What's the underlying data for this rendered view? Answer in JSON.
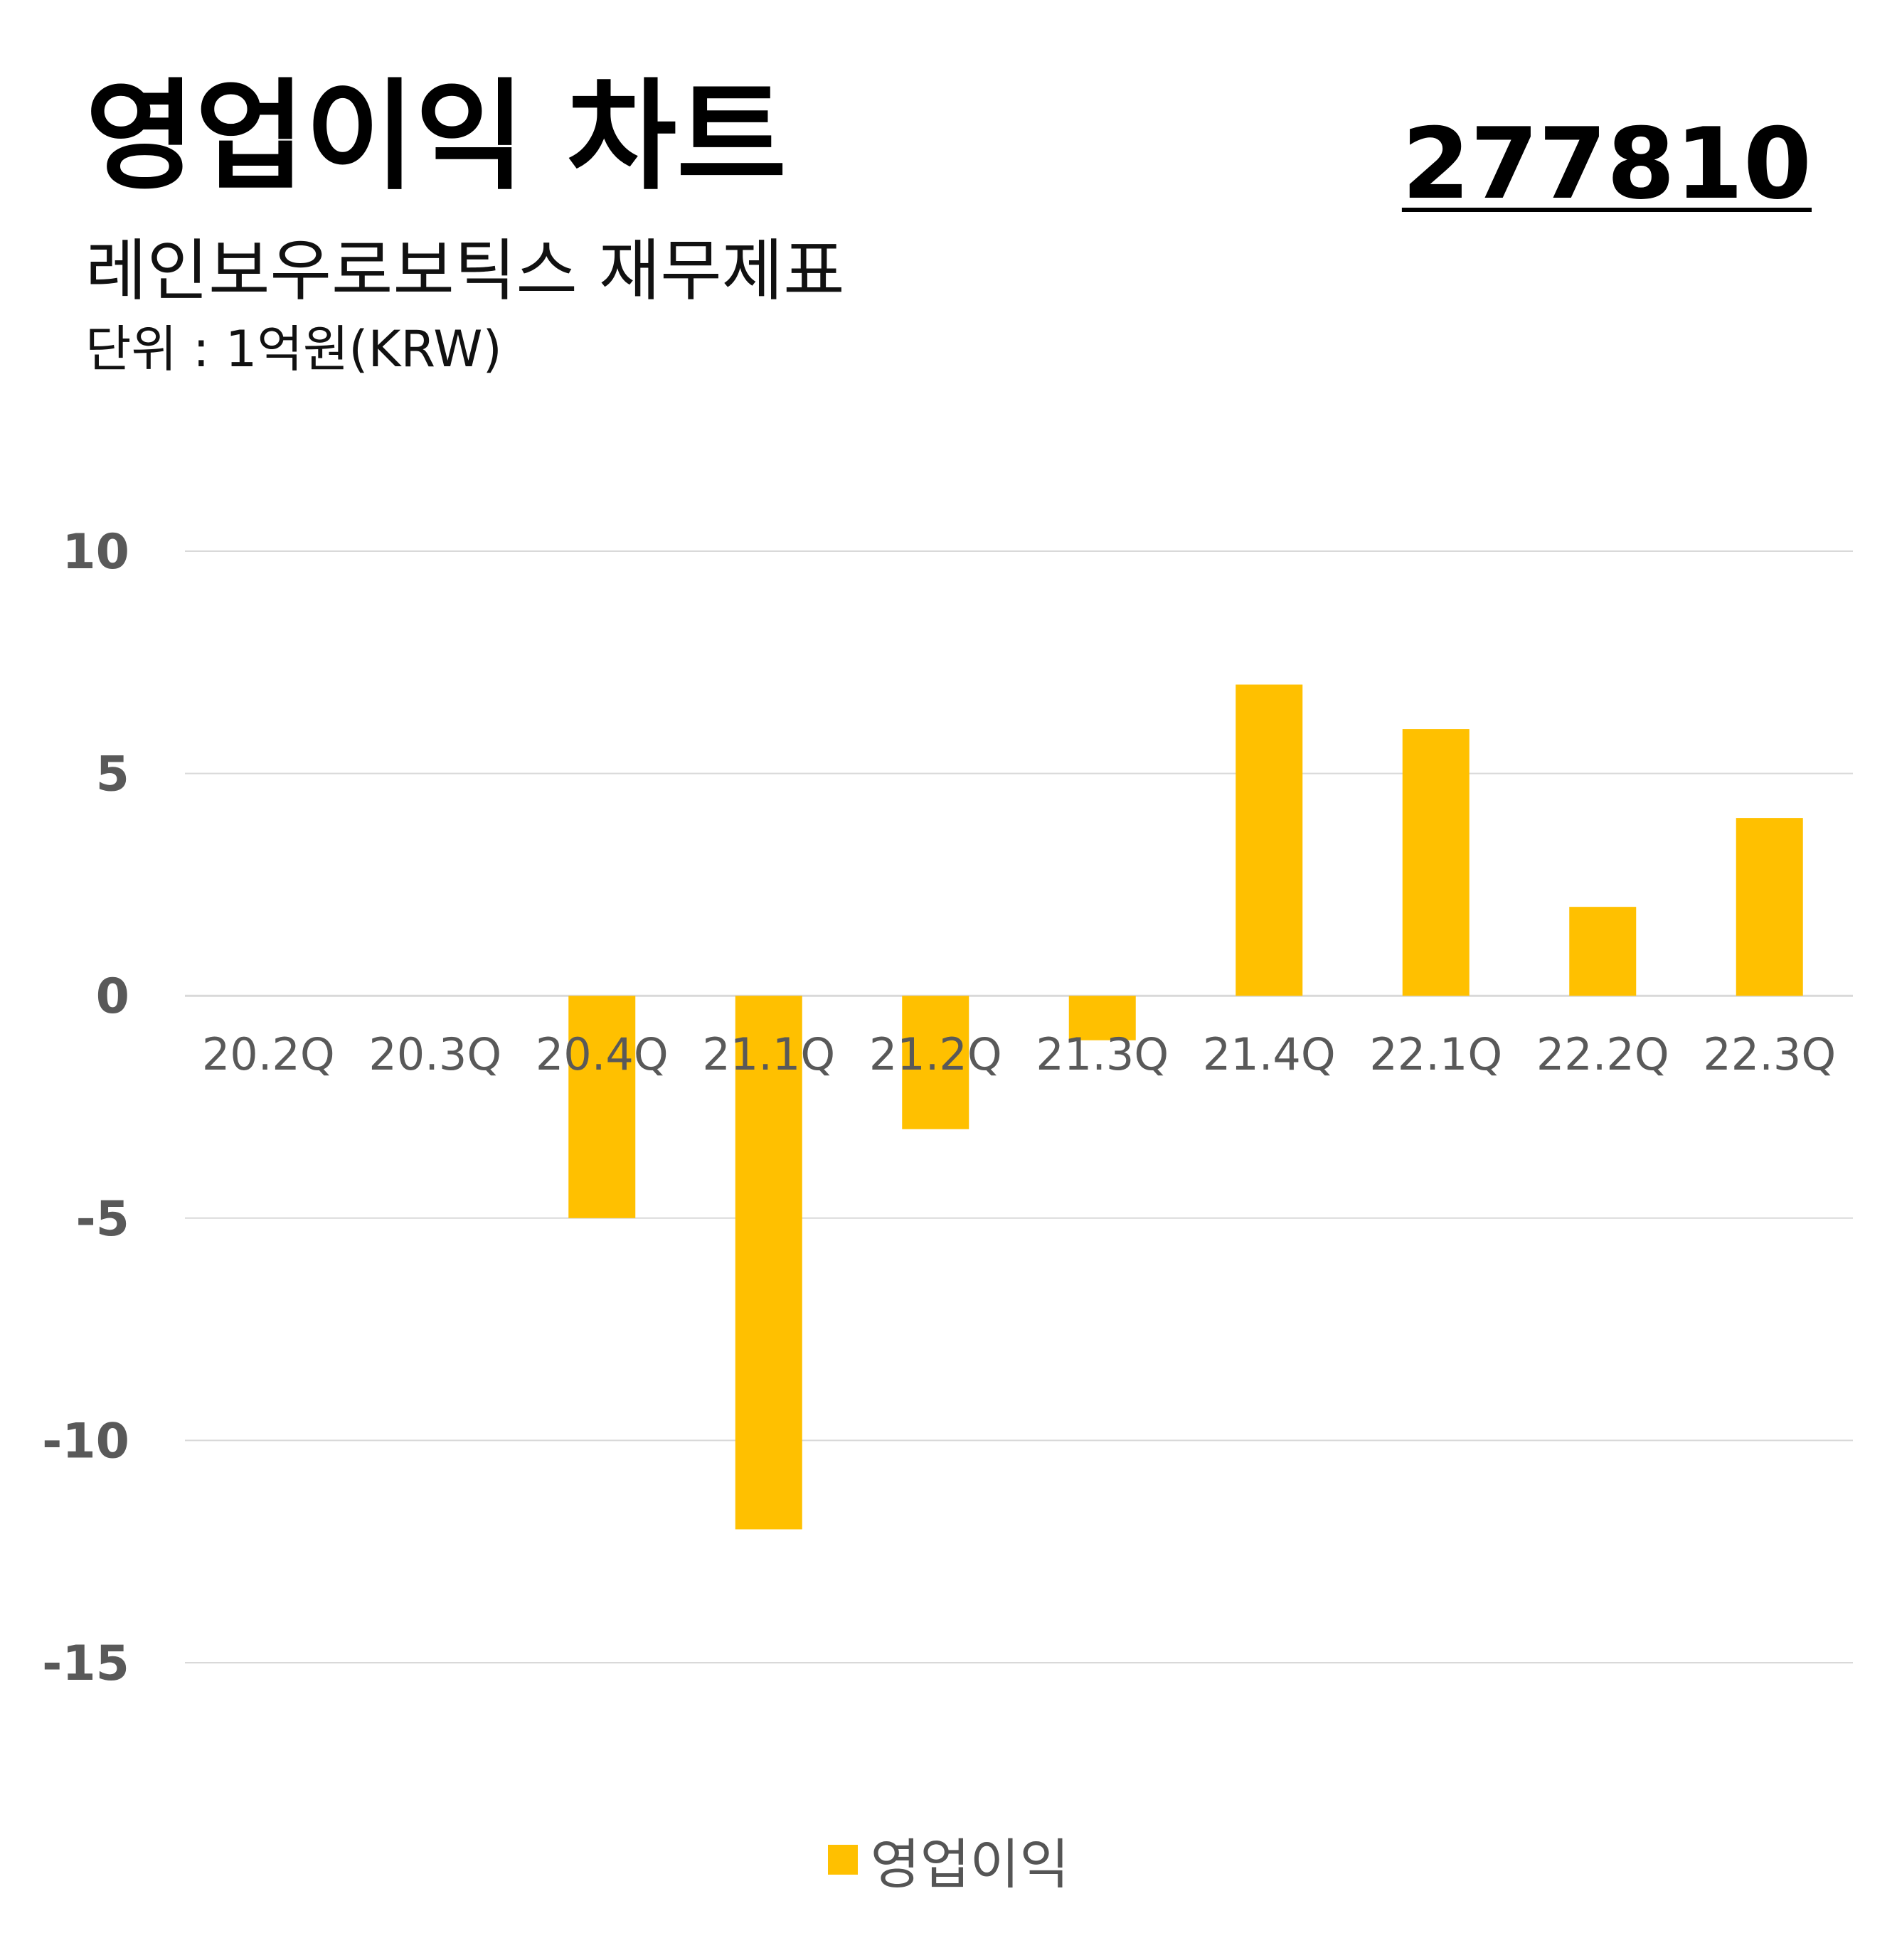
{
  "header": {
    "title": "영업이익 차트",
    "subtitle": "레인보우로보틱스 재무제표",
    "unit": "단위 : 1억원(KRW)",
    "code": "277810"
  },
  "colors": {
    "bar": "#FFC000",
    "grid": "#D9D9D9",
    "tick_text": "#595959",
    "category_text": "#595959"
  },
  "chart_data": {
    "type": "bar",
    "categories": [
      "20.2Q",
      "20.3Q",
      "20.4Q",
      "21.1Q",
      "21.2Q",
      "21.3Q",
      "21.4Q",
      "22.1Q",
      "22.2Q",
      "22.3Q"
    ],
    "series": [
      {
        "name": "영업이익",
        "values": [
          0,
          0,
          -5,
          -12,
          -3,
          -1,
          7,
          6,
          2,
          4
        ]
      }
    ],
    "ylim": [
      -15,
      10
    ],
    "yticks": [
      10,
      5,
      0,
      -5,
      -10,
      -15
    ],
    "ytick_labels": [
      "10",
      "5",
      "0",
      "-5",
      "-10",
      "-15"
    ],
    "grid": true,
    "legend_position": "bottom"
  }
}
